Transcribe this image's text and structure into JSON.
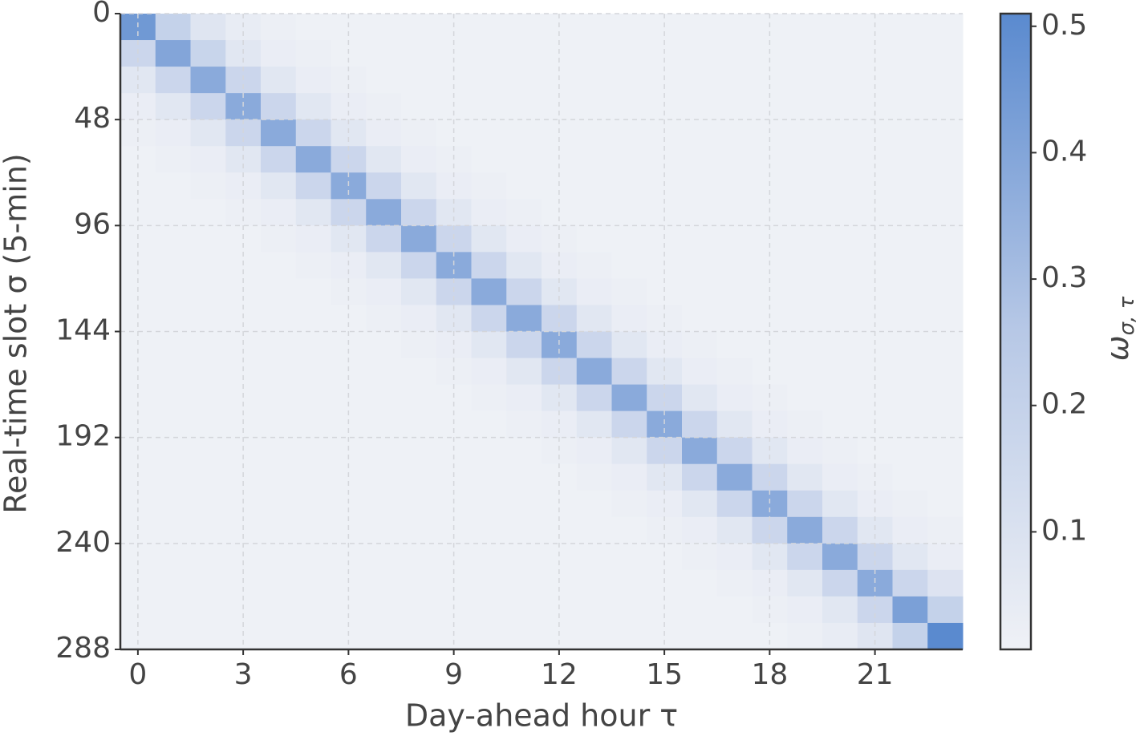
{
  "chart_data": {
    "type": "heatmap",
    "xlabel": "Day-ahead hour τ",
    "ylabel": "Real-time slot σ (5-min)",
    "colorbar_label": "ω",
    "colorbar_label_sub": "σ, τ",
    "x": [
      0,
      1,
      2,
      3,
      4,
      5,
      6,
      7,
      8,
      9,
      10,
      11,
      12,
      13,
      14,
      15,
      16,
      17,
      18,
      19,
      20,
      21,
      22,
      23
    ],
    "ybins": [
      0,
      12,
      24,
      36,
      48,
      60,
      72,
      84,
      96,
      108,
      120,
      132,
      144,
      156,
      168,
      180,
      192,
      204,
      216,
      228,
      240,
      252,
      264,
      276,
      288
    ],
    "xlim": [
      -0.5,
      23.5
    ],
    "xticks": [
      0,
      3,
      6,
      9,
      12,
      15,
      18,
      21
    ],
    "ylim": [
      0,
      288
    ],
    "y_inverted": true,
    "yticks": [
      0,
      48,
      96,
      144,
      192,
      240,
      288
    ],
    "clim": [
      0.007,
      0.51
    ],
    "cticks": [
      0.1,
      0.2,
      0.3,
      0.4,
      0.5
    ],
    "colormap": [
      "#eff1f6",
      "#b7c8e6",
      "#5a8acf"
    ],
    "grid": true,
    "values": [
      [
        0.45,
        0.2,
        0.08,
        0.04,
        0.02,
        0.01,
        0.01,
        0.01,
        0.01,
        0.01,
        0.01,
        0.01,
        0.01,
        0.01,
        0.01,
        0.01,
        0.01,
        0.01,
        0.01,
        0.01,
        0.01,
        0.01,
        0.01,
        0.01
      ],
      [
        0.17,
        0.4,
        0.18,
        0.07,
        0.03,
        0.02,
        0.01,
        0.01,
        0.01,
        0.01,
        0.01,
        0.01,
        0.01,
        0.01,
        0.01,
        0.01,
        0.01,
        0.01,
        0.01,
        0.01,
        0.01,
        0.01,
        0.01,
        0.01
      ],
      [
        0.07,
        0.17,
        0.38,
        0.17,
        0.07,
        0.03,
        0.02,
        0.01,
        0.01,
        0.01,
        0.01,
        0.01,
        0.01,
        0.01,
        0.01,
        0.01,
        0.01,
        0.01,
        0.01,
        0.01,
        0.01,
        0.01,
        0.01,
        0.01
      ],
      [
        0.03,
        0.07,
        0.17,
        0.38,
        0.17,
        0.07,
        0.03,
        0.02,
        0.01,
        0.01,
        0.01,
        0.01,
        0.01,
        0.01,
        0.01,
        0.01,
        0.01,
        0.01,
        0.01,
        0.01,
        0.01,
        0.01,
        0.01,
        0.01
      ],
      [
        0.02,
        0.03,
        0.07,
        0.17,
        0.38,
        0.17,
        0.07,
        0.03,
        0.02,
        0.01,
        0.01,
        0.01,
        0.01,
        0.01,
        0.01,
        0.01,
        0.01,
        0.01,
        0.01,
        0.01,
        0.01,
        0.01,
        0.01,
        0.01
      ],
      [
        0.01,
        0.02,
        0.03,
        0.07,
        0.17,
        0.38,
        0.17,
        0.07,
        0.03,
        0.02,
        0.01,
        0.01,
        0.01,
        0.01,
        0.01,
        0.01,
        0.01,
        0.01,
        0.01,
        0.01,
        0.01,
        0.01,
        0.01,
        0.01
      ],
      [
        0.01,
        0.01,
        0.02,
        0.03,
        0.07,
        0.17,
        0.38,
        0.17,
        0.07,
        0.03,
        0.02,
        0.01,
        0.01,
        0.01,
        0.01,
        0.01,
        0.01,
        0.01,
        0.01,
        0.01,
        0.01,
        0.01,
        0.01,
        0.01
      ],
      [
        0.01,
        0.01,
        0.01,
        0.02,
        0.03,
        0.07,
        0.17,
        0.38,
        0.17,
        0.07,
        0.03,
        0.02,
        0.01,
        0.01,
        0.01,
        0.01,
        0.01,
        0.01,
        0.01,
        0.01,
        0.01,
        0.01,
        0.01,
        0.01
      ],
      [
        0.01,
        0.01,
        0.01,
        0.01,
        0.02,
        0.03,
        0.07,
        0.17,
        0.38,
        0.17,
        0.07,
        0.03,
        0.02,
        0.01,
        0.01,
        0.01,
        0.01,
        0.01,
        0.01,
        0.01,
        0.01,
        0.01,
        0.01,
        0.01
      ],
      [
        0.01,
        0.01,
        0.01,
        0.01,
        0.01,
        0.02,
        0.03,
        0.07,
        0.17,
        0.38,
        0.17,
        0.07,
        0.03,
        0.02,
        0.01,
        0.01,
        0.01,
        0.01,
        0.01,
        0.01,
        0.01,
        0.01,
        0.01,
        0.01
      ],
      [
        0.01,
        0.01,
        0.01,
        0.01,
        0.01,
        0.01,
        0.02,
        0.03,
        0.07,
        0.17,
        0.38,
        0.17,
        0.07,
        0.03,
        0.02,
        0.01,
        0.01,
        0.01,
        0.01,
        0.01,
        0.01,
        0.01,
        0.01,
        0.01
      ],
      [
        0.01,
        0.01,
        0.01,
        0.01,
        0.01,
        0.01,
        0.01,
        0.02,
        0.03,
        0.07,
        0.17,
        0.38,
        0.17,
        0.07,
        0.03,
        0.02,
        0.01,
        0.01,
        0.01,
        0.01,
        0.01,
        0.01,
        0.01,
        0.01
      ],
      [
        0.01,
        0.01,
        0.01,
        0.01,
        0.01,
        0.01,
        0.01,
        0.01,
        0.02,
        0.03,
        0.07,
        0.17,
        0.38,
        0.17,
        0.07,
        0.03,
        0.02,
        0.01,
        0.01,
        0.01,
        0.01,
        0.01,
        0.01,
        0.01
      ],
      [
        0.01,
        0.01,
        0.01,
        0.01,
        0.01,
        0.01,
        0.01,
        0.01,
        0.01,
        0.02,
        0.03,
        0.07,
        0.17,
        0.38,
        0.17,
        0.07,
        0.03,
        0.02,
        0.01,
        0.01,
        0.01,
        0.01,
        0.01,
        0.01
      ],
      [
        0.01,
        0.01,
        0.01,
        0.01,
        0.01,
        0.01,
        0.01,
        0.01,
        0.01,
        0.01,
        0.02,
        0.03,
        0.07,
        0.17,
        0.38,
        0.17,
        0.07,
        0.03,
        0.02,
        0.01,
        0.01,
        0.01,
        0.01,
        0.01
      ],
      [
        0.01,
        0.01,
        0.01,
        0.01,
        0.01,
        0.01,
        0.01,
        0.01,
        0.01,
        0.01,
        0.01,
        0.02,
        0.03,
        0.07,
        0.17,
        0.38,
        0.17,
        0.07,
        0.03,
        0.02,
        0.01,
        0.01,
        0.01,
        0.01
      ],
      [
        0.01,
        0.01,
        0.01,
        0.01,
        0.01,
        0.01,
        0.01,
        0.01,
        0.01,
        0.01,
        0.01,
        0.01,
        0.02,
        0.03,
        0.07,
        0.17,
        0.38,
        0.17,
        0.07,
        0.03,
        0.02,
        0.01,
        0.01,
        0.01
      ],
      [
        0.01,
        0.01,
        0.01,
        0.01,
        0.01,
        0.01,
        0.01,
        0.01,
        0.01,
        0.01,
        0.01,
        0.01,
        0.01,
        0.02,
        0.03,
        0.07,
        0.17,
        0.38,
        0.17,
        0.07,
        0.03,
        0.02,
        0.01,
        0.01
      ],
      [
        0.01,
        0.01,
        0.01,
        0.01,
        0.01,
        0.01,
        0.01,
        0.01,
        0.01,
        0.01,
        0.01,
        0.01,
        0.01,
        0.01,
        0.02,
        0.03,
        0.07,
        0.17,
        0.38,
        0.17,
        0.07,
        0.03,
        0.02,
        0.01
      ],
      [
        0.01,
        0.01,
        0.01,
        0.01,
        0.01,
        0.01,
        0.01,
        0.01,
        0.01,
        0.01,
        0.01,
        0.01,
        0.01,
        0.01,
        0.01,
        0.02,
        0.03,
        0.07,
        0.17,
        0.38,
        0.17,
        0.07,
        0.03,
        0.02
      ],
      [
        0.01,
        0.01,
        0.01,
        0.01,
        0.01,
        0.01,
        0.01,
        0.01,
        0.01,
        0.01,
        0.01,
        0.01,
        0.01,
        0.01,
        0.01,
        0.01,
        0.02,
        0.03,
        0.07,
        0.17,
        0.38,
        0.17,
        0.07,
        0.03
      ],
      [
        0.01,
        0.01,
        0.01,
        0.01,
        0.01,
        0.01,
        0.01,
        0.01,
        0.01,
        0.01,
        0.01,
        0.01,
        0.01,
        0.01,
        0.01,
        0.01,
        0.01,
        0.02,
        0.03,
        0.07,
        0.17,
        0.38,
        0.17,
        0.09
      ],
      [
        0.01,
        0.01,
        0.01,
        0.01,
        0.01,
        0.01,
        0.01,
        0.01,
        0.01,
        0.01,
        0.01,
        0.01,
        0.01,
        0.01,
        0.01,
        0.01,
        0.01,
        0.01,
        0.02,
        0.03,
        0.07,
        0.17,
        0.42,
        0.2
      ],
      [
        0.01,
        0.01,
        0.01,
        0.01,
        0.01,
        0.01,
        0.01,
        0.01,
        0.01,
        0.01,
        0.01,
        0.01,
        0.01,
        0.01,
        0.01,
        0.01,
        0.01,
        0.01,
        0.01,
        0.02,
        0.04,
        0.08,
        0.2,
        0.51
      ]
    ]
  }
}
